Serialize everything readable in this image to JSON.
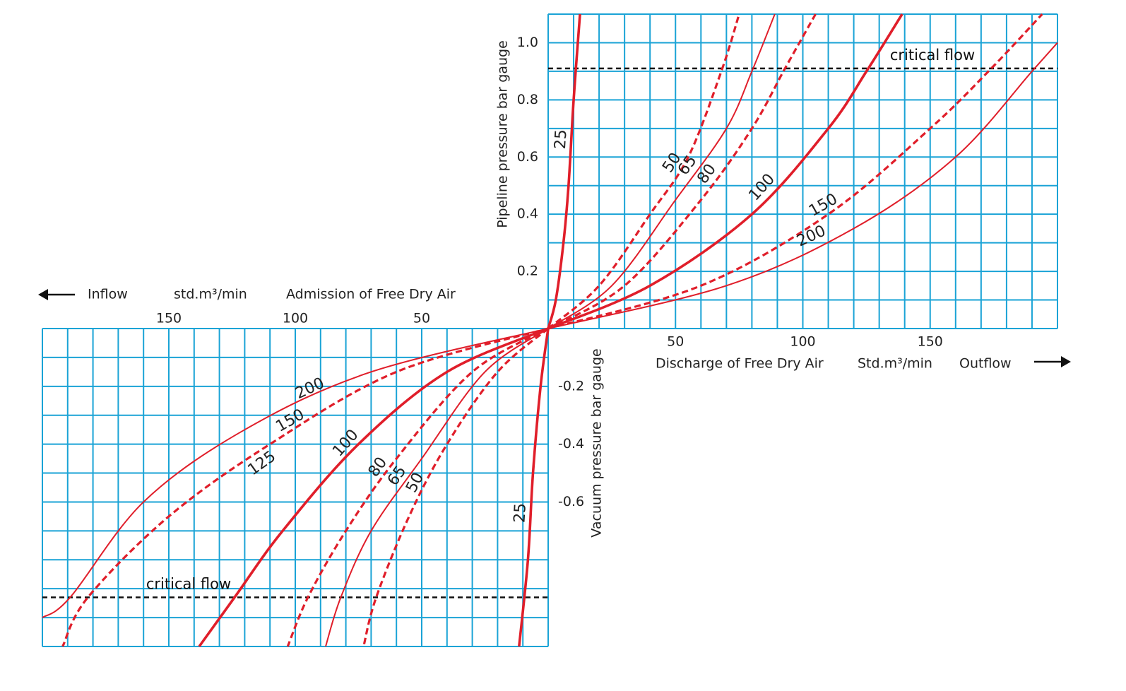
{
  "chart_data": [
    {
      "type": "line",
      "quadrant": "upper-right",
      "y_label": "Pipeline pressure bar gauge",
      "x_label_parts": [
        "Discharge of Free Dry Air",
        "Std.m³/min",
        "Outflow"
      ],
      "xlim": [
        0,
        200
      ],
      "ylim": [
        0,
        1.1
      ],
      "xticks": [
        50,
        100,
        150
      ],
      "yticks": [
        0.2,
        0.4,
        0.6,
        0.8,
        {
          "value": 1,
          "label": "1.0"
        }
      ],
      "xgrid": [
        0,
        10,
        20,
        30,
        40,
        50,
        60,
        70,
        80,
        90,
        100,
        110,
        120,
        130,
        140,
        150,
        160,
        170,
        180,
        190,
        200
      ],
      "ygrid": [
        0,
        0.1,
        0.2,
        0.3,
        0.4,
        0.5,
        0.6,
        0.7,
        0.8,
        0.9,
        1,
        1.1
      ],
      "grid_color": "#1aa3d6",
      "critical_flow": {
        "label": "critical flow",
        "value": 0.91
      },
      "series": [
        {
          "name": "25",
          "color": "#e01e2a",
          "style": "thick",
          "x": [
            0,
            3,
            6,
            8,
            10,
            12.5
          ],
          "values": [
            0,
            0.1,
            0.3,
            0.5,
            0.8,
            1.1
          ]
        },
        {
          "name": "50",
          "color": "#e01e2a",
          "style": "dashed",
          "x": [
            0,
            20,
            40,
            55,
            68,
            75
          ],
          "values": [
            0,
            0.15,
            0.4,
            0.6,
            0.9,
            1.1
          ]
        },
        {
          "name": "65",
          "color": "#e01e2a",
          "style": "thin",
          "x": [
            0,
            25,
            50,
            70,
            80,
            89
          ],
          "values": [
            0,
            0.15,
            0.45,
            0.7,
            0.9,
            1.1
          ]
        },
        {
          "name": "80",
          "color": "#e01e2a",
          "style": "dashed",
          "x": [
            0,
            30,
            60,
            80,
            93,
            105
          ],
          "values": [
            0,
            0.15,
            0.45,
            0.7,
            0.91,
            1.1
          ]
        },
        {
          "name": "100",
          "color": "#e01e2a",
          "style": "thick",
          "x": [
            0,
            40,
            80,
            110,
            125,
            139
          ],
          "values": [
            0,
            0.15,
            0.4,
            0.7,
            0.9,
            1.1
          ]
        },
        {
          "name": "150",
          "color": "#e01e2a",
          "style": "dashed",
          "x": [
            0,
            60,
            110,
            150,
            174,
            194
          ],
          "values": [
            0,
            0.15,
            0.4,
            0.7,
            0.91,
            1.1
          ]
        },
        {
          "name": "200",
          "color": "#e01e2a",
          "style": "thin",
          "x": [
            0,
            70,
            120,
            160,
            190,
            200
          ],
          "values": [
            0,
            0.15,
            0.35,
            0.6,
            0.9,
            1
          ]
        }
      ]
    },
    {
      "type": "line",
      "quadrant": "lower-left",
      "y_label": "Vacuum pressure bar gauge",
      "x_label_parts": [
        "Inflow",
        "std.m³/min",
        "Admission of Free Dry Air"
      ],
      "xlim": [
        200,
        0
      ],
      "ylim": [
        -1.1,
        0
      ],
      "xticks": [
        50,
        100,
        150
      ],
      "yticks": [
        -0.2,
        -0.4,
        -0.6
      ],
      "xgrid": [
        0,
        10,
        20,
        30,
        40,
        50,
        60,
        70,
        80,
        90,
        100,
        110,
        120,
        130,
        140,
        150,
        160,
        170,
        180,
        190,
        200
      ],
      "ygrid": [
        0,
        -0.1,
        -0.2,
        -0.3,
        -0.4,
        -0.5,
        -0.6,
        -0.7,
        -0.8,
        -0.9,
        -1,
        -1.1
      ],
      "grid_color": "#1aa3d6",
      "critical_flow": {
        "label": "critical flow",
        "value": -0.93
      },
      "annotations": [
        "125"
      ],
      "series": [
        {
          "name": "25",
          "color": "#e01e2a",
          "style": "thick",
          "x": [
            0,
            3,
            6,
            8,
            11.5
          ],
          "values": [
            0,
            -0.2,
            -0.5,
            -0.8,
            -1.1
          ]
        },
        {
          "name": "50",
          "color": "#e01e2a",
          "style": "dashed",
          "x": [
            0,
            20,
            40,
            55,
            68,
            73
          ],
          "values": [
            0,
            -0.15,
            -0.4,
            -0.65,
            -0.93,
            -1.1
          ]
        },
        {
          "name": "65",
          "color": "#e01e2a",
          "style": "thin",
          "x": [
            0,
            25,
            50,
            70,
            82,
            88
          ],
          "values": [
            0,
            -0.15,
            -0.45,
            -0.7,
            -0.93,
            -1.1
          ]
        },
        {
          "name": "80",
          "color": "#e01e2a",
          "style": "dashed",
          "x": [
            0,
            30,
            60,
            80,
            95,
            103
          ],
          "values": [
            0,
            -0.15,
            -0.45,
            -0.7,
            -0.93,
            -1.1
          ]
        },
        {
          "name": "100",
          "color": "#e01e2a",
          "style": "thick",
          "x": [
            0,
            40,
            75,
            105,
            124,
            138
          ],
          "values": [
            0,
            -0.15,
            -0.4,
            -0.7,
            -0.93,
            -1.1
          ]
        },
        {
          "name": "150",
          "color": "#e01e2a",
          "style": "dashed",
          "x": [
            0,
            60,
            110,
            150,
            182,
            192
          ],
          "values": [
            0,
            -0.15,
            -0.4,
            -0.65,
            -0.93,
            -1.1
          ]
        },
        {
          "name": "200",
          "color": "#e01e2a",
          "style": "thin",
          "x": [
            0,
            70,
            120,
            160,
            189,
            200
          ],
          "values": [
            0,
            -0.15,
            -0.35,
            -0.6,
            -0.93,
            -1
          ]
        }
      ]
    }
  ]
}
